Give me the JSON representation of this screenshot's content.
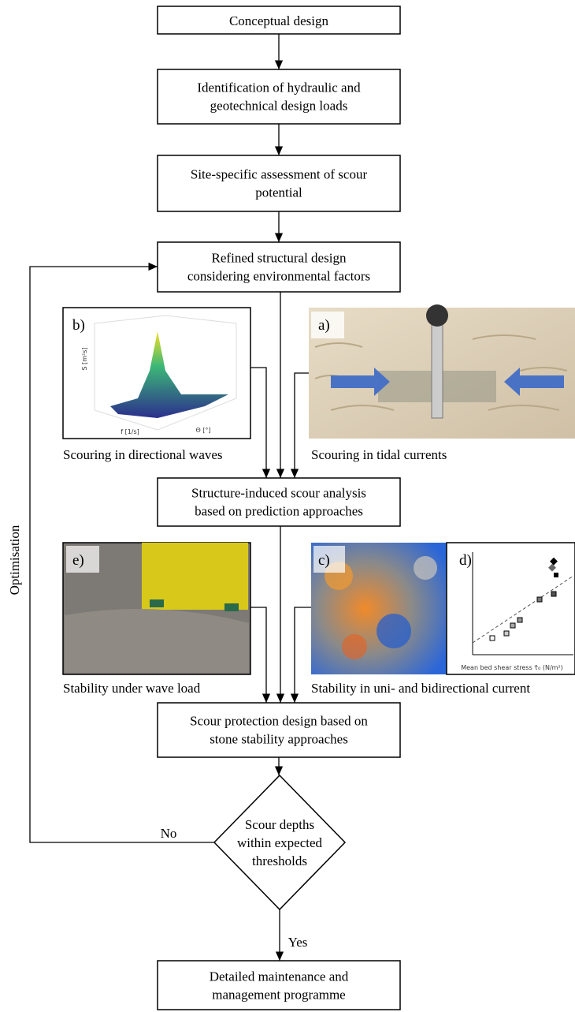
{
  "nodes": [
    {
      "lines": [
        "Conceptual design"
      ]
    },
    {
      "lines": [
        "Identification of hydraulic and",
        "geotechnical design loads"
      ]
    },
    {
      "lines": [
        "Site-specific assessment of scour",
        "potential"
      ]
    },
    {
      "lines": [
        "Refined structural design",
        "considering environmental factors"
      ]
    },
    {
      "lines": [
        "Structure-induced scour analysis",
        "based on prediction approaches"
      ]
    },
    {
      "lines": [
        "Scour protection design based on",
        "stone stability approaches"
      ]
    },
    {
      "lines": [
        "Scour depths",
        "within expected",
        "thresholds"
      ]
    },
    {
      "lines": [
        "Detailed maintenance and",
        "management programme"
      ]
    }
  ],
  "panels": [
    {
      "label": "b)",
      "caption": "Scouring in directional waves",
      "x_axis": "f [1/s]",
      "y_axis": "S [m²s]",
      "z_axis": "Θ [°]"
    },
    {
      "label": "a)",
      "caption": "Scouring in tidal currents"
    },
    {
      "label": "e)",
      "caption": "Stability under wave load"
    },
    {
      "label": "c)",
      "caption": "Stability in uni- and bidirectional current"
    },
    {
      "label": "d)",
      "x_axis": "Mean bed shear stress τ̄₀ (N/m²)"
    }
  ],
  "edges": {
    "no": "No",
    "yes": "Yes",
    "loop": "Optimisation"
  }
}
